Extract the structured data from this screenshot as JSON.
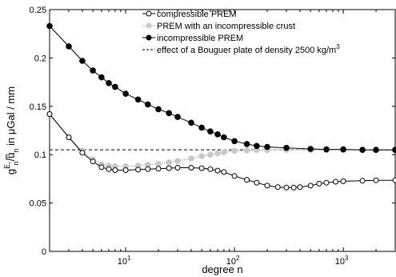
{
  "chart_data": {
    "type": "line",
    "xscale": "log",
    "xlim": [
      2,
      3000
    ],
    "ylim": [
      0,
      0.25
    ],
    "xlabel": "degree n",
    "ylabel": {
      "base": "g",
      "sup": "E, m",
      "sub": "n",
      "slash": "/u",
      "sub2": "n",
      "rest": " in μGal / mm"
    },
    "xticks": [
      {
        "value": 10,
        "base": "10",
        "exp": "1"
      },
      {
        "value": 100,
        "base": "10",
        "exp": "2"
      },
      {
        "value": 1000,
        "base": "10",
        "exp": "3"
      }
    ],
    "yticks": [
      {
        "value": 0,
        "label": "0"
      },
      {
        "value": 0.05,
        "label": "0.05"
      },
      {
        "value": 0.1,
        "label": "0.1"
      },
      {
        "value": 0.15,
        "label": "0.15"
      },
      {
        "value": 0.2,
        "label": "0.2"
      },
      {
        "value": 0.25,
        "label": "0.25"
      }
    ],
    "legend_position": "top-right",
    "series": [
      {
        "name": "compressible PREM",
        "marker": "open-circle",
        "line_color": "#000000",
        "marker_color": "#000000",
        "points": [
          [
            2,
            0.142
          ],
          [
            3,
            0.118
          ],
          [
            4,
            0.102
          ],
          [
            5,
            0.093
          ],
          [
            6,
            0.087
          ],
          [
            7,
            0.085
          ],
          [
            8,
            0.084
          ],
          [
            10,
            0.084
          ],
          [
            13,
            0.0845
          ],
          [
            16,
            0.085
          ],
          [
            20,
            0.0855
          ],
          [
            25,
            0.086
          ],
          [
            30,
            0.0865
          ],
          [
            40,
            0.0865
          ],
          [
            50,
            0.086
          ],
          [
            60,
            0.085
          ],
          [
            70,
            0.0835
          ],
          [
            80,
            0.082
          ],
          [
            100,
            0.078
          ],
          [
            130,
            0.074
          ],
          [
            160,
            0.071
          ],
          [
            200,
            0.068
          ],
          [
            250,
            0.0665
          ],
          [
            300,
            0.066
          ],
          [
            350,
            0.066
          ],
          [
            400,
            0.0665
          ],
          [
            500,
            0.068
          ],
          [
            600,
            0.07
          ],
          [
            700,
            0.071
          ],
          [
            850,
            0.072
          ],
          [
            1000,
            0.0725
          ],
          [
            1500,
            0.073
          ],
          [
            2000,
            0.0735
          ],
          [
            3000,
            0.0735
          ]
        ]
      },
      {
        "name": "PREM with an incompressible crust",
        "marker": "filled-circle",
        "line_color": "#c8c8c8",
        "marker_color": "#c8c8c8",
        "points": [
          [
            2,
            0.142
          ],
          [
            3,
            0.118
          ],
          [
            4,
            0.104
          ],
          [
            5,
            0.095
          ],
          [
            6,
            0.09
          ],
          [
            7,
            0.0885
          ],
          [
            8,
            0.088
          ],
          [
            10,
            0.088
          ],
          [
            13,
            0.0885
          ],
          [
            16,
            0.0895
          ],
          [
            20,
            0.0905
          ],
          [
            25,
            0.092
          ],
          [
            30,
            0.0935
          ],
          [
            40,
            0.096
          ],
          [
            50,
            0.0985
          ],
          [
            60,
            0.1
          ],
          [
            70,
            0.1015
          ],
          [
            80,
            0.1025
          ],
          [
            100,
            0.104
          ],
          [
            130,
            0.1045
          ],
          [
            160,
            0.105
          ],
          [
            200,
            0.105
          ],
          [
            300,
            0.105
          ],
          [
            500,
            0.105
          ],
          [
            700,
            0.105
          ],
          [
            1000,
            0.105
          ],
          [
            1500,
            0.105
          ],
          [
            2000,
            0.105
          ],
          [
            3000,
            0.105
          ]
        ]
      },
      {
        "name": "incompressible PREM",
        "marker": "filled-circle",
        "line_color": "#000000",
        "marker_color": "#000000",
        "points": [
          [
            2,
            0.233
          ],
          [
            3,
            0.212
          ],
          [
            4,
            0.197
          ],
          [
            5,
            0.187
          ],
          [
            6,
            0.18
          ],
          [
            7,
            0.174
          ],
          [
            8,
            0.17
          ],
          [
            10,
            0.163
          ],
          [
            13,
            0.157
          ],
          [
            16,
            0.152
          ],
          [
            20,
            0.147
          ],
          [
            25,
            0.143
          ],
          [
            30,
            0.139
          ],
          [
            40,
            0.133
          ],
          [
            50,
            0.128
          ],
          [
            60,
            0.124
          ],
          [
            70,
            0.121
          ],
          [
            80,
            0.118
          ],
          [
            100,
            0.114
          ],
          [
            130,
            0.111
          ],
          [
            160,
            0.109
          ],
          [
            200,
            0.108
          ],
          [
            300,
            0.107
          ],
          [
            500,
            0.106
          ],
          [
            700,
            0.1055
          ],
          [
            1000,
            0.1055
          ],
          [
            1500,
            0.105
          ],
          [
            2000,
            0.105
          ],
          [
            3000,
            0.105
          ]
        ]
      },
      {
        "name": "effect of a Bouguer plate of density 2500 kg/m",
        "name_superscript": "3",
        "marker": "none",
        "line_style": "dashed",
        "line_color": "#000000",
        "constant_y": 0.105
      }
    ]
  }
}
